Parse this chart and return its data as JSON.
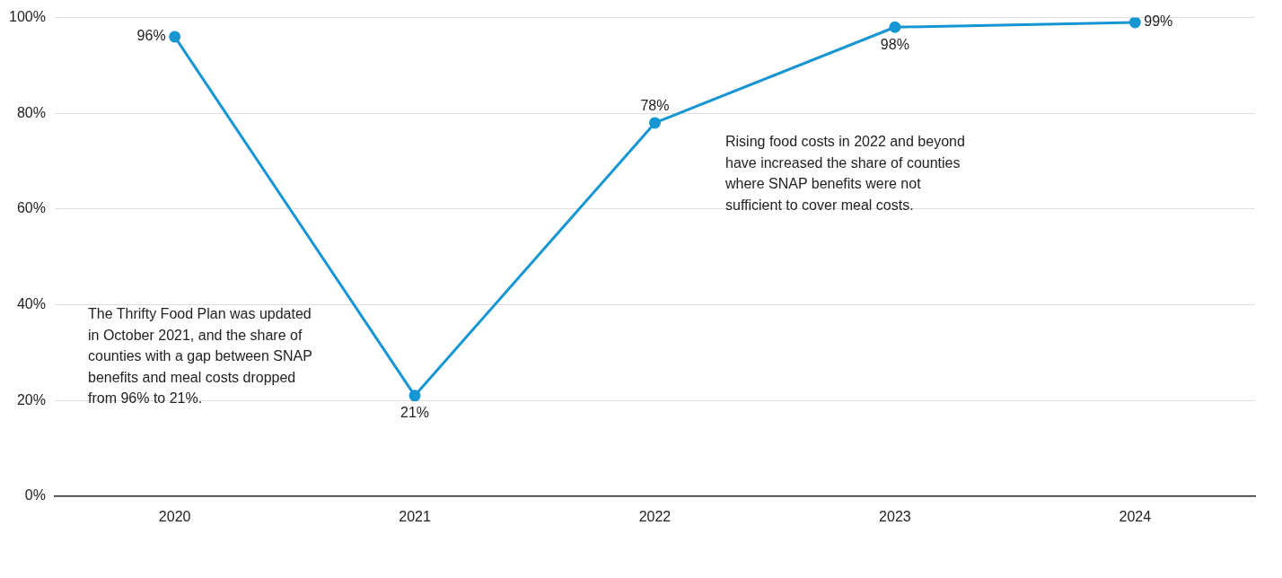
{
  "chart_data": {
    "type": "line",
    "categories": [
      "2020",
      "2021",
      "2022",
      "2023",
      "2024"
    ],
    "series": [
      {
        "color": "#1696d2",
        "values": [
          96,
          21,
          78,
          98,
          99
        ]
      }
    ],
    "value_labels": [
      "96%",
      "21%",
      "78%",
      "98%",
      "99%"
    ],
    "ylim": [
      0,
      100
    ],
    "yticks": [
      {
        "value": 0,
        "label": "0%"
      },
      {
        "value": 20,
        "label": "20%"
      },
      {
        "value": 40,
        "label": "40%"
      },
      {
        "value": 60,
        "label": "60%"
      },
      {
        "value": 80,
        "label": "80%"
      },
      {
        "value": 100,
        "label": "100%"
      }
    ],
    "grid": "y",
    "legend": false,
    "marker": "circle",
    "line_style": "solid",
    "annotations": [
      "The Thrifty Food Plan was updated in October 2021, and the share of counties with a gap between SNAP benefits and meal costs dropped from 96% to 21%.",
      "Rising food costs in 2022 and beyond have increased the share of counties where SNAP benefits were not sufficient to cover meal costs."
    ]
  }
}
